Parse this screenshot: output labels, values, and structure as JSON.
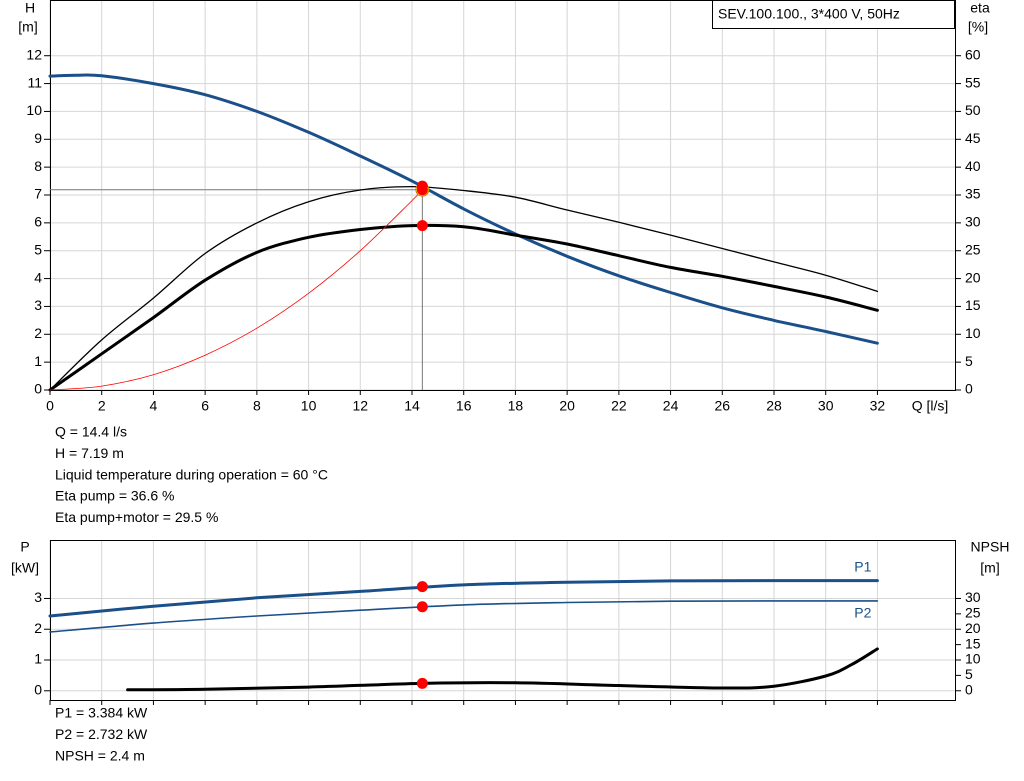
{
  "chart_data": [
    {
      "type": "line",
      "title": "SEV.100.100., 3*400 V, 50Hz",
      "y_label": "H",
      "y_unit": "[m]",
      "y2_label": "eta",
      "y2_unit": "[%]",
      "x_label": "Q [l/s]",
      "xlim": [
        0,
        35
      ],
      "xticks": [
        0,
        2,
        4,
        6,
        8,
        10,
        12,
        14,
        16,
        18,
        20,
        22,
        24,
        26,
        28,
        30,
        32
      ],
      "ylim": [
        0,
        14
      ],
      "yticks": [
        0,
        1,
        2,
        3,
        4,
        5,
        6,
        7,
        8,
        9,
        10,
        11,
        12
      ],
      "y2lim": [
        0,
        70
      ],
      "y2ticks": [
        0,
        5,
        10,
        15,
        20,
        25,
        30,
        35,
        40,
        45,
        50,
        55,
        60
      ],
      "grid": true,
      "operating_x": 14.4,
      "series": [
        {
          "color": "#1a4f8a",
          "line_weight": "thick",
          "x": [
            0,
            1,
            2,
            4,
            6,
            8,
            10,
            12,
            14,
            16,
            18,
            20,
            22,
            24,
            26,
            28,
            30,
            32
          ],
          "values": [
            11.27,
            11.3,
            11.28,
            11.0,
            10.6,
            10.0,
            9.25,
            8.4,
            7.5,
            6.5,
            5.6,
            4.8,
            4.1,
            3.5,
            2.95,
            2.5,
            2.1,
            1.68
          ],
          "operating_value": 7.19
        },
        {
          "color": "#000000",
          "line_weight": "thin",
          "axis": "y2",
          "x": [
            0,
            2,
            4,
            6,
            8,
            10,
            12,
            14,
            16,
            18,
            20,
            22,
            24,
            26,
            28,
            30,
            32
          ],
          "values": [
            0,
            9,
            16.5,
            24.5,
            30,
            33.8,
            35.9,
            36.5,
            35.8,
            34.6,
            32.3,
            30.1,
            27.8,
            25.4,
            23,
            20.6,
            17.7
          ],
          "operating_value": 36.6
        },
        {
          "color": "#000000",
          "line_weight": "thick",
          "axis": "y2",
          "x": [
            0,
            2,
            4,
            6,
            8,
            10,
            12,
            14,
            16,
            18,
            20,
            22,
            24,
            26,
            28,
            30,
            32
          ],
          "values": [
            0,
            6.5,
            13,
            19.7,
            24.7,
            27.4,
            28.8,
            29.5,
            29.3,
            27.8,
            26.2,
            24.1,
            22,
            20.4,
            18.6,
            16.7,
            14.3
          ],
          "operating_value": 29.5
        },
        {
          "color": "#ff0000",
          "line_weight": "hair",
          "x": [
            0,
            2,
            4,
            6,
            8,
            10,
            12,
            14,
            14.4
          ],
          "values": [
            0,
            0.14,
            0.55,
            1.25,
            2.22,
            3.47,
            5.0,
            6.8,
            7.19
          ]
        }
      ],
      "info": [
        "Q = 14.4 l/s",
        "H = 7.19 m",
        "Liquid temperature during operation = 60 °C",
        "Eta pump = 36.6 %",
        "Eta pump+motor = 29.5 %"
      ]
    },
    {
      "type": "line",
      "y_label": "P",
      "y_unit": "[kW]",
      "y2_label": "NPSH",
      "y2_unit": "[m]",
      "xlim": [
        0,
        35
      ],
      "ylim": [
        -0.3,
        4.9
      ],
      "yticks": [
        0,
        1,
        2,
        3
      ],
      "y2lim": [
        -3,
        49
      ],
      "y2ticks": [
        0,
        5,
        10,
        15,
        20,
        25,
        30
      ],
      "grid": true,
      "operating_x": 14.4,
      "series": [
        {
          "name": "P1",
          "color": "#1a4f8a",
          "line_weight": "thick",
          "x": [
            0,
            4,
            8,
            12,
            16,
            20,
            24,
            28,
            32
          ],
          "values": [
            2.43,
            2.75,
            3.02,
            3.23,
            3.44,
            3.53,
            3.57,
            3.58,
            3.58
          ],
          "operating_value": 3.384
        },
        {
          "name": "P2",
          "color": "#1a4f8a",
          "line_weight": "normal",
          "x": [
            0,
            4,
            8,
            12,
            16,
            20,
            24,
            28,
            32
          ],
          "values": [
            1.91,
            2.2,
            2.43,
            2.62,
            2.79,
            2.87,
            2.91,
            2.92,
            2.92
          ],
          "operating_value": 2.732
        },
        {
          "color": "#000000",
          "line_weight": "thick",
          "axis": "y2",
          "x": [
            3,
            6,
            10,
            14.4,
            18,
            22,
            26,
            28,
            30,
            31,
            32
          ],
          "values": [
            0.3,
            0.5,
            1.2,
            2.4,
            2.6,
            1.7,
            0.9,
            1.5,
            4.8,
            8.5,
            13.6
          ],
          "operating_value": 2.4
        }
      ],
      "info": [
        "P1 = 3.384 kW",
        "P2 = 2.732 kW",
        "NPSH = 2.4 m"
      ]
    }
  ]
}
